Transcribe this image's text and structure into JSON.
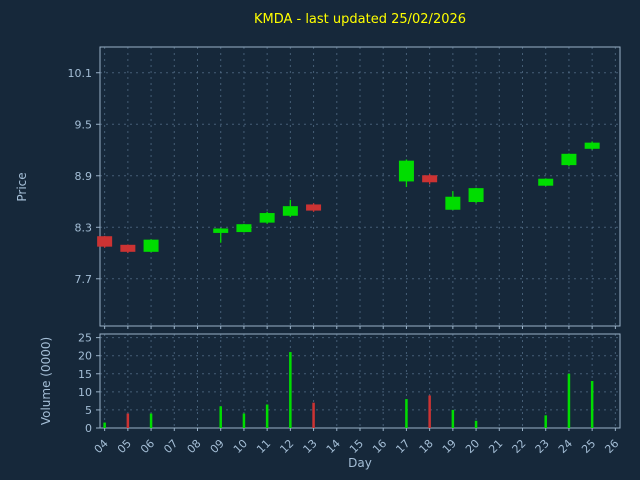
{
  "title": "KMDA - last updated 25/02/2026",
  "xlabel": "Day",
  "xticks": [
    "04",
    "05",
    "06",
    "07",
    "08",
    "09",
    "10",
    "11",
    "12",
    "13",
    "14",
    "15",
    "16",
    "17",
    "18",
    "19",
    "20",
    "21",
    "22",
    "23",
    "24",
    "25",
    "26"
  ],
  "price_chart": {
    "ylabel": "Price",
    "yticks": [
      10.1,
      9.5,
      8.9,
      8.3,
      7.7
    ]
  },
  "volume_chart": {
    "ylabel": "Volume (0000)",
    "yticks": [
      0,
      5,
      10,
      15,
      20,
      25
    ]
  },
  "colors": {
    "background": "#16283a",
    "title": "#ffff00",
    "axis_text": "#a4bed6",
    "spine": "#9ab2c8",
    "grid": "#5a7590",
    "up": "#00dd00",
    "down": "#cc3333"
  },
  "chart_data": {
    "type": "candlestick",
    "title": "KMDA - last updated 25/02/2026",
    "xlabel": "Day",
    "ylabel_price": "Price",
    "ylabel_volume": "Volume (0000)",
    "x_range": [
      3.8,
      26.2
    ],
    "price_range": [
      7.15,
      10.4
    ],
    "volume_range": [
      0,
      26
    ],
    "grid": true,
    "points": [
      {
        "day": 4,
        "open": 8.19,
        "high": 8.2,
        "low": 8.06,
        "close": 8.08,
        "volume": 1.5,
        "direction": "down",
        "volume_direction": "up"
      },
      {
        "day": 5,
        "open": 8.09,
        "high": 8.1,
        "low": 8.0,
        "close": 8.02,
        "volume": 4,
        "direction": "down",
        "volume_direction": "down"
      },
      {
        "day": 6,
        "open": 8.02,
        "high": 8.16,
        "low": 8.01,
        "close": 8.15,
        "volume": 4,
        "direction": "up",
        "volume_direction": "up"
      },
      {
        "day": 9,
        "open": 8.24,
        "high": 8.29,
        "low": 8.12,
        "close": 8.28,
        "volume": 6,
        "direction": "up",
        "volume_direction": "up"
      },
      {
        "day": 10,
        "open": 8.25,
        "high": 8.34,
        "low": 8.24,
        "close": 8.33,
        "volume": 4,
        "direction": "up",
        "volume_direction": "up"
      },
      {
        "day": 11,
        "open": 8.36,
        "high": 8.48,
        "low": 8.34,
        "close": 8.46,
        "volume": 6.5,
        "direction": "up",
        "volume_direction": "up"
      },
      {
        "day": 12,
        "open": 8.44,
        "high": 8.62,
        "low": 8.42,
        "close": 8.54,
        "volume": 21,
        "direction": "up",
        "volume_direction": "up"
      },
      {
        "day": 13,
        "open": 8.56,
        "high": 8.58,
        "low": 8.48,
        "close": 8.5,
        "volume": 7,
        "direction": "down",
        "volume_direction": "down"
      },
      {
        "day": 17,
        "open": 8.84,
        "high": 9.09,
        "low": 8.77,
        "close": 9.07,
        "volume": 8,
        "direction": "up",
        "volume_direction": "up"
      },
      {
        "day": 18,
        "open": 8.9,
        "high": 8.92,
        "low": 8.8,
        "close": 8.83,
        "volume": 9,
        "direction": "down",
        "volume_direction": "down"
      },
      {
        "day": 19,
        "open": 8.51,
        "high": 8.72,
        "low": 8.5,
        "close": 8.65,
        "volume": 5,
        "direction": "up",
        "volume_direction": "up"
      },
      {
        "day": 20,
        "open": 8.6,
        "high": 8.76,
        "low": 8.58,
        "close": 8.75,
        "volume": 2,
        "direction": "up",
        "volume_direction": "up"
      },
      {
        "day": 23,
        "open": 8.79,
        "high": 8.87,
        "low": 8.78,
        "close": 8.86,
        "volume": 3.5,
        "direction": "up",
        "volume_direction": "up"
      },
      {
        "day": 24,
        "open": 9.03,
        "high": 9.16,
        "low": 9.01,
        "close": 9.15,
        "volume": 15,
        "direction": "up",
        "volume_direction": "up"
      },
      {
        "day": 25,
        "open": 9.22,
        "high": 9.3,
        "low": 9.2,
        "close": 9.28,
        "volume": 13,
        "direction": "up",
        "volume_direction": "up"
      }
    ]
  }
}
